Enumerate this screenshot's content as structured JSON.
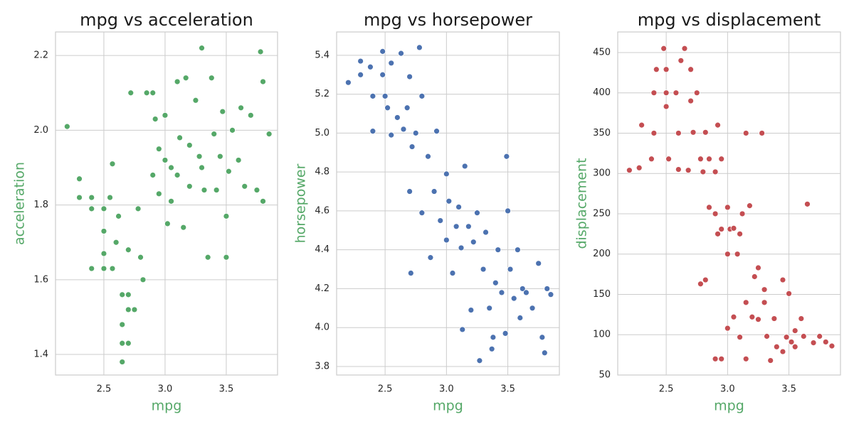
{
  "chart_data": [
    {
      "type": "scatter",
      "title": "mpg vs acceleration",
      "x_label": "mpg",
      "y_label": "acceleration",
      "color": "#55a868",
      "grid": true,
      "xlim": [
        2.105,
        3.919
      ],
      "ylim": [
        1.345,
        2.263
      ],
      "xticks": [
        2.5,
        {
          "value": 3,
          "label": "3.0"
        },
        3.5
      ],
      "yticks": [
        1.4,
        1.6,
        1.8,
        {
          "value": 2,
          "label": "2.0"
        },
        2.2
      ],
      "x": [
        2.2,
        2.3,
        2.3,
        2.4,
        2.4,
        2.4,
        2.5,
        2.5,
        2.5,
        2.5,
        2.55,
        2.57,
        2.57,
        2.6,
        2.62,
        2.65,
        2.65,
        2.65,
        2.65,
        2.7,
        2.7,
        2.7,
        2.7,
        2.72,
        2.75,
        2.78,
        2.8,
        2.82,
        2.85,
        2.9,
        2.9,
        2.92,
        2.95,
        3.0,
        3.02,
        3.05,
        3.1,
        3.12,
        3.15,
        3.17,
        3.2,
        3.25,
        3.28,
        3.3,
        3.32,
        3.35,
        3.38,
        3.4,
        3.42,
        3.45,
        3.47,
        3.5,
        3.5,
        3.52,
        3.55,
        3.6,
        3.62,
        3.65,
        3.7,
        3.75,
        3.78,
        3.8,
        3.8,
        3.85,
        3.0,
        3.1,
        3.2,
        3.3,
        2.95,
        3.05
      ],
      "y": [
        2.01,
        1.87,
        1.82,
        1.82,
        1.79,
        1.63,
        1.63,
        1.67,
        1.73,
        1.79,
        1.82,
        1.91,
        1.63,
        1.7,
        1.77,
        1.56,
        1.48,
        1.43,
        1.38,
        1.56,
        1.52,
        1.43,
        1.68,
        2.1,
        1.52,
        1.79,
        1.66,
        1.6,
        2.1,
        2.1,
        1.88,
        2.03,
        1.95,
        2.04,
        1.75,
        1.9,
        2.13,
        1.98,
        1.74,
        2.14,
        1.85,
        2.08,
        1.93,
        2.22,
        1.84,
        1.66,
        2.14,
        1.99,
        1.84,
        1.93,
        2.05,
        1.77,
        1.66,
        1.89,
        2.0,
        1.92,
        2.06,
        1.85,
        2.04,
        1.84,
        2.21,
        2.13,
        1.81,
        1.99,
        1.92,
        1.88,
        1.96,
        1.9,
        1.83,
        1.81
      ]
    },
    {
      "type": "scatter",
      "title": "mpg vs horsepower",
      "x_label": "mpg",
      "y_label": "horsepower",
      "color": "#4c72b0",
      "grid": true,
      "xlim": [
        2.105,
        3.92
      ],
      "ylim": [
        3.756,
        5.52
      ],
      "xticks": [
        2.5,
        {
          "value": 3,
          "label": "3.0"
        },
        3.5
      ],
      "yticks": [
        3.8,
        {
          "value": 4,
          "label": "4.0"
        },
        4.2,
        4.4,
        4.6,
        4.8,
        {
          "value": 5,
          "label": "5.0"
        },
        5.2,
        5.4
      ],
      "x": [
        2.2,
        2.3,
        2.3,
        2.38,
        2.4,
        2.4,
        2.48,
        2.48,
        2.5,
        2.52,
        2.55,
        2.55,
        2.6,
        2.63,
        2.65,
        2.68,
        2.7,
        2.7,
        2.72,
        2.75,
        2.78,
        2.8,
        2.8,
        2.85,
        2.87,
        2.9,
        2.92,
        2.95,
        3.0,
        3.0,
        3.02,
        3.05,
        3.08,
        3.1,
        3.12,
        3.13,
        3.15,
        3.18,
        3.2,
        3.22,
        3.25,
        3.27,
        3.3,
        3.32,
        3.35,
        3.38,
        3.4,
        3.42,
        3.45,
        3.48,
        3.49,
        3.5,
        3.52,
        3.55,
        3.58,
        3.6,
        3.62,
        3.65,
        3.7,
        3.75,
        3.78,
        3.8,
        3.82,
        3.85,
        3.37,
        2.71
      ],
      "y": [
        5.26,
        5.37,
        5.3,
        5.34,
        5.19,
        5.01,
        5.42,
        5.3,
        5.19,
        5.13,
        4.99,
        5.36,
        5.08,
        5.41,
        5.02,
        5.13,
        5.29,
        4.7,
        4.93,
        5.0,
        5.44,
        4.59,
        5.19,
        4.88,
        4.36,
        4.7,
        5.01,
        4.55,
        4.79,
        4.45,
        4.65,
        4.28,
        4.52,
        4.62,
        4.41,
        3.99,
        4.83,
        4.52,
        4.09,
        4.44,
        4.59,
        3.83,
        4.3,
        4.49,
        4.1,
        3.95,
        4.23,
        4.4,
        4.18,
        3.97,
        4.88,
        4.6,
        4.3,
        4.15,
        4.4,
        4.05,
        4.2,
        4.18,
        4.1,
        4.33,
        3.95,
        3.87,
        4.2,
        4.17,
        3.89,
        4.28
      ]
    },
    {
      "type": "scatter",
      "title": "mpg vs displacement",
      "x_label": "mpg",
      "y_label": "displacement",
      "color": "#c44e52",
      "grid": true,
      "xlim": [
        2.105,
        3.92
      ],
      "ylim": [
        50,
        475.5
      ],
      "xticks": [
        2.5,
        {
          "value": 3,
          "label": "3.0"
        },
        3.5
      ],
      "yticks": [
        50,
        100,
        150,
        200,
        250,
        300,
        350,
        400,
        450
      ],
      "x": [
        2.2,
        2.28,
        2.3,
        2.38,
        2.4,
        2.4,
        2.42,
        2.48,
        2.5,
        2.5,
        2.5,
        2.52,
        2.58,
        2.6,
        2.6,
        2.62,
        2.65,
        2.68,
        2.7,
        2.7,
        2.72,
        2.75,
        2.78,
        2.8,
        2.82,
        2.85,
        2.9,
        2.92,
        2.95,
        2.78,
        2.82,
        2.85,
        2.9,
        2.92,
        2.95,
        3.0,
        3.0,
        3.02,
        3.05,
        3.08,
        3.1,
        3.12,
        3.15,
        3.15,
        3.18,
        3.2,
        3.22,
        3.25,
        3.28,
        3.3,
        3.32,
        3.35,
        3.38,
        3.4,
        3.45,
        3.48,
        3.5,
        3.52,
        3.55,
        3.6,
        3.62,
        3.65,
        3.7,
        3.75,
        3.8,
        3.85,
        2.9,
        2.95,
        3.0,
        3.05,
        3.1,
        3.15,
        3.25,
        3.3,
        3.45,
        3.55
      ],
      "y": [
        304,
        307,
        360,
        318,
        350,
        400,
        429,
        455,
        429,
        383,
        400,
        318,
        400,
        350,
        305,
        440,
        455,
        304,
        429,
        390,
        351,
        400,
        318,
        302,
        351,
        318,
        302,
        360,
        318,
        163,
        168,
        258,
        250,
        225,
        231,
        200,
        258,
        231,
        232,
        200,
        225,
        250,
        350,
        140,
        260,
        122,
        172,
        183,
        350,
        156,
        98,
        68,
        120,
        85,
        168,
        97,
        151,
        91,
        85,
        120,
        98,
        262,
        90,
        98,
        91,
        86,
        70,
        70,
        108,
        122,
        97,
        70,
        119,
        140,
        79,
        105
      ]
    }
  ]
}
